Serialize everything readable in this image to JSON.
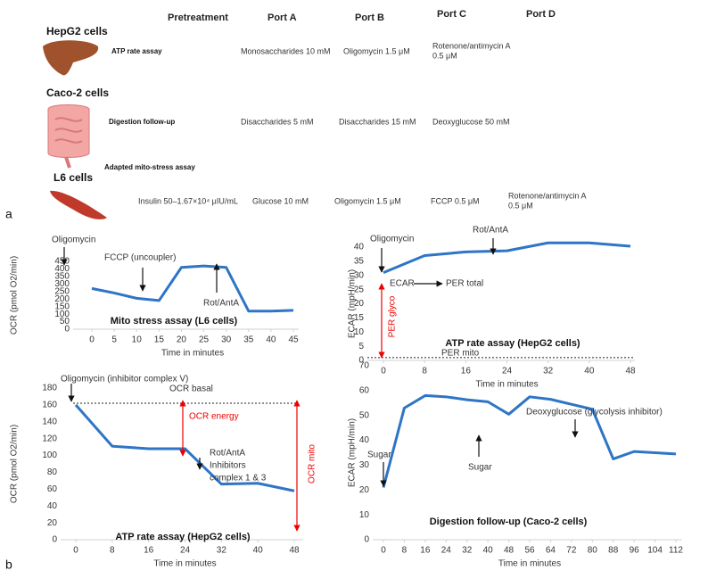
{
  "panel_a": {
    "label": "a",
    "headers": [
      "Pretreatment",
      "Port A",
      "Port B",
      "Port C",
      "Port D"
    ],
    "rows": [
      {
        "cell": "HepG2 cells",
        "assay": "ATP rate assay",
        "entries": [
          "Monosaccharides  10 mM",
          "Oligomycin 1.5  μM",
          "Rotenone/antimycin A",
          "0.5  μM"
        ]
      },
      {
        "cell": "Caco-2 cells",
        "assay": "Digestion follow-up",
        "entries": [
          "Disaccharides  5 mM",
          "Disaccharides  15 mM",
          "Deoxyglucose 50 mM"
        ]
      },
      {
        "cell": "L6 cells",
        "assay": "Adapted mito-stress assay",
        "entries": [
          "Insulin 50–1.67×10⁴ μIU/mL",
          "Glucose  10 mM",
          "Oligomycin 1.5  μM",
          "FCCP 0.5  μM",
          "Rotenone/antimycin A",
          " 0.5 μM"
        ]
      }
    ]
  },
  "panel_b": {
    "label": "b"
  },
  "chart_data": [
    {
      "type": "line",
      "title": "Mito stress assay (L6 cells)",
      "x_label": "Time in minutes",
      "y_label": "OCR (pmol O2/min)",
      "x": [
        0,
        5,
        10,
        15,
        20,
        25,
        30,
        35,
        40,
        45
      ],
      "values": [
        270,
        240,
        205,
        190,
        410,
        420,
        410,
        120,
        120,
        125
      ],
      "color": "#2e75c6",
      "xlim": [
        0,
        45
      ],
      "xticks": [
        0,
        5,
        10,
        15,
        20,
        25,
        30,
        35,
        40,
        45
      ],
      "ylim": [
        0,
        450
      ],
      "yticks": [
        0,
        50,
        100,
        150,
        200,
        250,
        300,
        350,
        400,
        450
      ],
      "annotations": [
        "Oligomycin",
        "FCCP (uncoupler)",
        "Rot/AntA"
      ],
      "hlines": []
    },
    {
      "type": "line",
      "title": "ATP rate assay (HepG2 cells)",
      "x_label": "Time in minutes",
      "y_label": "ECAR (mpH/min)",
      "x": [
        0,
        8,
        16,
        24,
        32,
        40,
        48
      ],
      "values": [
        31,
        37,
        38.3,
        38.7,
        41.5,
        41.5,
        40.3
      ],
      "color": "#2e75c6",
      "xlim": [
        0,
        48
      ],
      "xticks": [
        0,
        8,
        16,
        24,
        32,
        40,
        48
      ],
      "ylim": [
        0,
        40
      ],
      "yticks": [
        0,
        5,
        10,
        15,
        20,
        25,
        30,
        35,
        40
      ],
      "annotations": [
        "Oligomycin",
        "Rot/AntA",
        "ECAR",
        "PER total",
        "PER glyco"
      ],
      "hlines": [
        {
          "value": 1,
          "label": "PER mito"
        }
      ]
    },
    {
      "type": "line",
      "title": "ATP rate assay (HepG2 cells)",
      "x_label": "Time in minutes",
      "y_label": "OCR (pmol O2/min)",
      "x": [
        0,
        8,
        16,
        24,
        32,
        40,
        48
      ],
      "values": [
        160,
        111,
        108,
        108,
        66,
        67,
        58
      ],
      "color": "#2e75c6",
      "xlim": [
        0,
        48
      ],
      "xticks": [
        0,
        8,
        16,
        24,
        32,
        40,
        48
      ],
      "ylim": [
        0,
        180
      ],
      "yticks": [
        0,
        20,
        40,
        60,
        80,
        100,
        120,
        140,
        160,
        180
      ],
      "annotations": [
        "Oligomycin (inhibitor complex V)",
        "OCR energy",
        "Rot/AntA",
        "Inhibitors",
        "complex 1 & 3",
        "OCR mito"
      ],
      "hlines": [
        {
          "value": 162,
          "label": "OCR basal"
        }
      ]
    },
    {
      "type": "line",
      "title": "Digestion follow-up (Caco-2 cells)",
      "x_label": "Time in minutes",
      "y_label": "ECAR (mpH/min)",
      "x": [
        0,
        8,
        16,
        24,
        32,
        40,
        48,
        56,
        64,
        72,
        80,
        88,
        96,
        104,
        112
      ],
      "values": [
        21,
        53,
        58,
        57.5,
        56.3,
        55.5,
        50.5,
        57.5,
        56.5,
        54.5,
        52.5,
        32.5,
        35.5,
        35,
        34.5
      ],
      "color": "#2e75c6",
      "xlim": [
        0,
        112
      ],
      "xticks": [
        0,
        8,
        16,
        24,
        32,
        40,
        48,
        56,
        64,
        72,
        80,
        88,
        96,
        104,
        112
      ],
      "ylim": [
        0,
        70
      ],
      "yticks": [
        0,
        10,
        20,
        30,
        40,
        50,
        60,
        70
      ],
      "annotations": [
        "Sugar",
        "Sugar",
        "Deoxyglucose (glycolysis inhibitor)"
      ],
      "hlines": []
    }
  ]
}
